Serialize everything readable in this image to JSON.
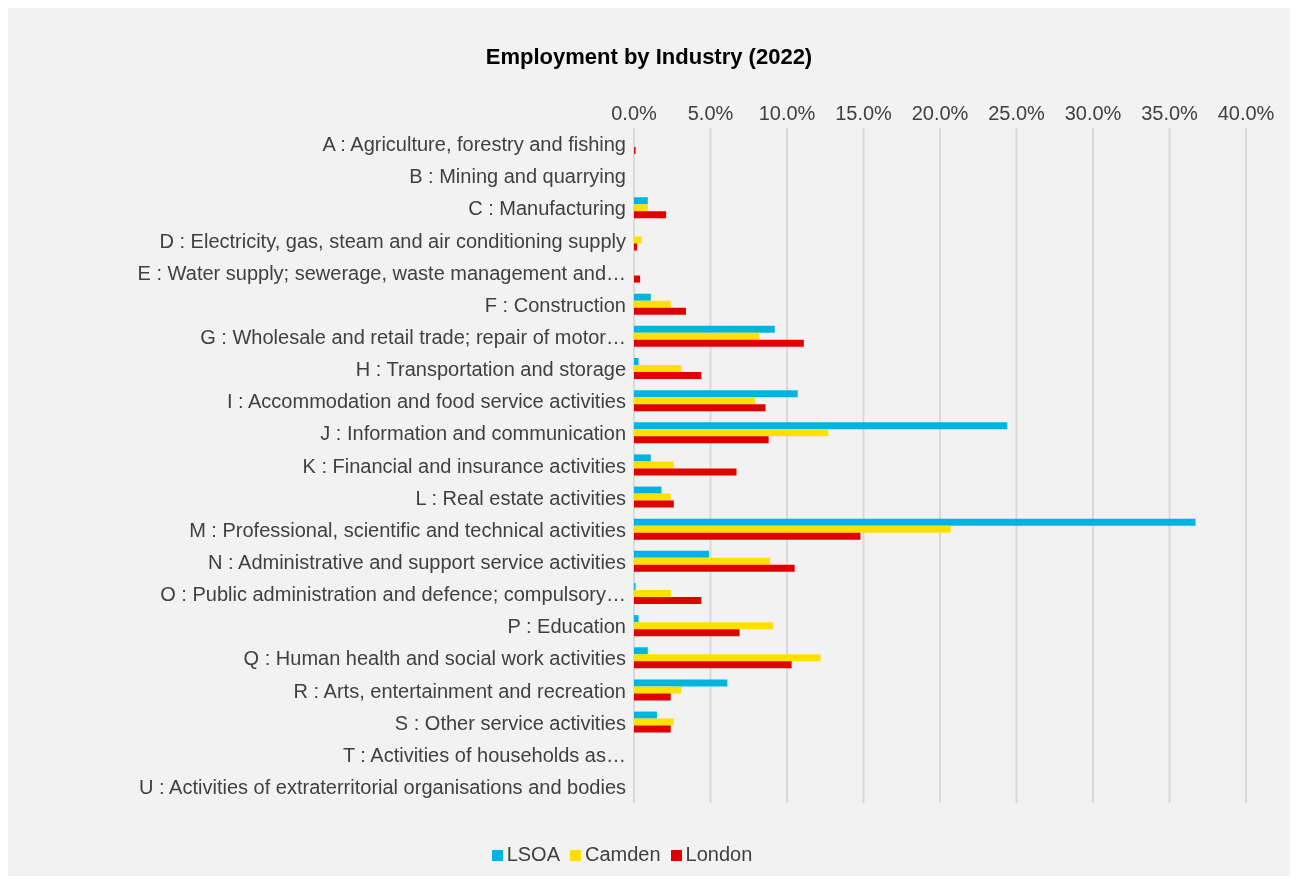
{
  "chart_data": {
    "type": "bar",
    "orientation": "horizontal",
    "title": "Employment by Industry (2022)",
    "categories": [
      "A : Agriculture, forestry and fishing",
      "B : Mining and quarrying",
      "C : Manufacturing",
      "D : Electricity, gas, steam and air conditioning supply",
      "E : Water supply; sewerage, waste management and…",
      "F : Construction",
      "G : Wholesale and retail trade; repair of motor…",
      "H : Transportation and storage",
      "I : Accommodation and food service activities",
      "J : Information and communication",
      "K : Financial and insurance activities",
      "L : Real estate activities",
      "M : Professional, scientific and technical activities",
      "N : Administrative and support service activities",
      "O : Public administration and defence; compulsory…",
      "P : Education",
      "Q : Human health and social work activities",
      "R : Arts, entertainment and recreation",
      "S : Other service activities",
      "T : Activities of households as…",
      "U : Activities of extraterritorial organisations and bodies"
    ],
    "series": [
      {
        "name": "LSOA",
        "color": "#00b4e2",
        "values": [
          0,
          0,
          0.9,
          0,
          0,
          1.1,
          9.2,
          0.3,
          10.7,
          24.4,
          1.1,
          1.8,
          36.7,
          4.9,
          0.1,
          0.3,
          0.9,
          6.1,
          1.5,
          0,
          0
        ]
      },
      {
        "name": "Camden",
        "color": "#ffe000",
        "values": [
          0,
          0,
          0.9,
          0.5,
          0,
          2.4,
          8.2,
          3.1,
          7.9,
          12.7,
          2.6,
          2.4,
          20.7,
          8.9,
          2.4,
          9.1,
          12.2,
          3.1,
          2.6,
          0,
          0
        ]
      },
      {
        "name": "London",
        "color": "#e00000",
        "values": [
          0.1,
          0,
          2.1,
          0.2,
          0.4,
          3.4,
          11.1,
          4.4,
          8.6,
          8.8,
          6.7,
          2.6,
          14.8,
          10.5,
          4.4,
          6.9,
          10.3,
          2.4,
          2.4,
          0,
          0
        ]
      }
    ],
    "xlim": [
      0,
      40
    ],
    "xticks": [
      {
        "value": 0,
        "label": "0.0%"
      },
      {
        "value": 5,
        "label": "5.0%"
      },
      {
        "value": 10,
        "label": "10.0%"
      },
      {
        "value": 15,
        "label": "15.0%"
      },
      {
        "value": 20,
        "label": "20.0%"
      },
      {
        "value": 25,
        "label": "25.0%"
      },
      {
        "value": 30,
        "label": "30.0%"
      },
      {
        "value": 35,
        "label": "35.0%"
      },
      {
        "value": 40,
        "label": "40.0%"
      }
    ],
    "grid": "x",
    "legend": "bottom"
  }
}
